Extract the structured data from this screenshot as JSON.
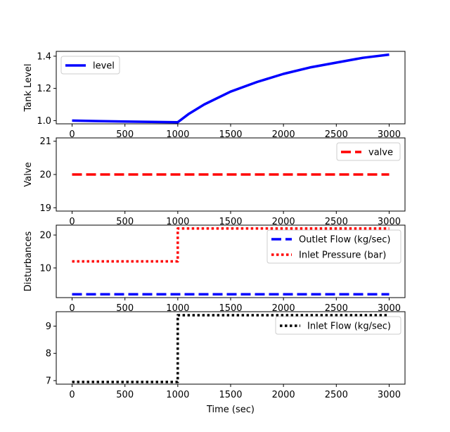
{
  "chart_data": [
    {
      "type": "line",
      "ylabel": "Tank Level",
      "xlabel": "",
      "xlim": [
        -150,
        3150
      ],
      "ylim": [
        0.98,
        1.43
      ],
      "xticks": [
        "0",
        "500",
        "1000",
        "1500",
        "2000",
        "2500",
        "3000"
      ],
      "yticks": [
        "1.0",
        "1.2",
        "1.4"
      ],
      "legend": "top-left",
      "series": [
        {
          "name": "level",
          "color": "#0000ff",
          "style": "solid",
          "x": [
            0,
            250,
            500,
            750,
            1000,
            1100,
            1250,
            1500,
            1750,
            2000,
            2250,
            2500,
            2750,
            3000
          ],
          "y": [
            1.0,
            0.997,
            0.994,
            0.992,
            0.99,
            1.04,
            1.1,
            1.18,
            1.24,
            1.29,
            1.33,
            1.36,
            1.39,
            1.41
          ]
        }
      ]
    },
    {
      "type": "line",
      "ylabel": "Valve",
      "xlabel": "",
      "xlim": [
        -150,
        3150
      ],
      "ylim": [
        18.9,
        21.1
      ],
      "xticks": [
        "0",
        "500",
        "1000",
        "1500",
        "2000",
        "2500",
        "3000"
      ],
      "yticks": [
        "19",
        "20",
        "21"
      ],
      "legend": "top-right",
      "series": [
        {
          "name": "valve",
          "color": "#ff0000",
          "style": "dashed",
          "x": [
            0,
            3000
          ],
          "y": [
            20,
            20
          ]
        }
      ]
    },
    {
      "type": "line",
      "ylabel": "Disturbances",
      "xlabel": "",
      "xlim": [
        -150,
        3150
      ],
      "ylim": [
        1.0,
        23.0
      ],
      "xticks": [
        "0",
        "500",
        "1000",
        "1500",
        "2000",
        "2500",
        "3000"
      ],
      "yticks": [
        "10",
        "20"
      ],
      "legend": "top-right",
      "series": [
        {
          "name": "Outlet Flow (kg/sec)",
          "color": "#0000ff",
          "style": "dashed",
          "x": [
            0,
            3000
          ],
          "y": [
            2,
            2
          ]
        },
        {
          "name": "Inlet Pressure (bar)",
          "color": "#ff0000",
          "style": "dotted",
          "x": [
            0,
            1000,
            1000,
            3000
          ],
          "y": [
            12,
            12,
            22,
            22
          ]
        }
      ]
    },
    {
      "type": "line",
      "ylabel": "",
      "xlabel": "Time (sec)",
      "xlim": [
        -150,
        3150
      ],
      "ylim": [
        6.87,
        9.53
      ],
      "xticks": [
        "0",
        "500",
        "1000",
        "1500",
        "2000",
        "2500",
        "3000"
      ],
      "yticks": [
        "7",
        "8",
        "9"
      ],
      "legend": "top-right",
      "series": [
        {
          "name": "Inlet Flow (kg/sec)",
          "color": "#000000",
          "style": "dotted",
          "x": [
            0,
            1000,
            1000,
            3000
          ],
          "y": [
            6.95,
            6.95,
            9.4,
            9.4
          ]
        }
      ]
    }
  ]
}
